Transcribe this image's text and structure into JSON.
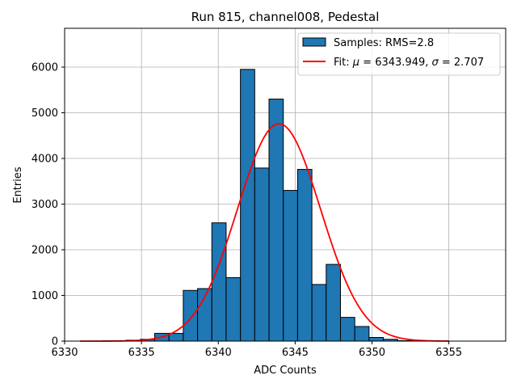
{
  "chart_data": {
    "type": "bar",
    "title": "Run 815, channel008, Pedestal",
    "xlabel": "ADC Counts",
    "ylabel": "Entries",
    "xlim": [
      6330,
      6358.7
    ],
    "ylim": [
      0,
      6850
    ],
    "x_ticks": [
      6330,
      6335,
      6340,
      6345,
      6350,
      6355
    ],
    "y_ticks": [
      0,
      1000,
      2000,
      3000,
      4000,
      5000,
      6000
    ],
    "grid": true,
    "legend_position": "top-right",
    "histogram": {
      "name": "Samples: RMS=2.8",
      "bin_width": 0.93,
      "bin_starts": [
        6333.07,
        6334.0,
        6334.93,
        6335.86,
        6336.79,
        6337.72,
        6338.65,
        6339.58,
        6340.51,
        6341.44,
        6342.37,
        6343.3,
        6344.23,
        6345.16,
        6346.09,
        6347.02,
        6347.95,
        6348.88,
        6349.81,
        6350.74,
        6351.67,
        6352.6
      ],
      "values": [
        10,
        20,
        40,
        170,
        170,
        1110,
        1150,
        2590,
        1390,
        5950,
        3790,
        5300,
        3300,
        3760,
        1240,
        1680,
        520,
        320,
        80,
        40,
        10,
        5
      ],
      "color": "#1f77b4"
    },
    "fit": {
      "name_prefix": "Fit: ",
      "name_mu": "μ",
      "name_mid": " = 6343.949, ",
      "name_sigma": "σ",
      "name_suffix": " = 2.707",
      "mu": 6343.949,
      "sigma": 2.707,
      "amplitude": 4760,
      "x_range": [
        6331,
        6355
      ],
      "color": "#ff0000"
    }
  }
}
